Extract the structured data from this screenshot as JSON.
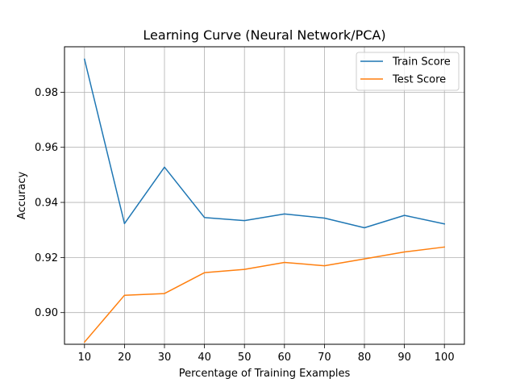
{
  "chart_data": {
    "type": "line",
    "title": "Learning Curve (Neural Network/PCA)",
    "xlabel": "Percentage of Training Examples",
    "ylabel": "Accuracy",
    "x": [
      10,
      20,
      30,
      40,
      50,
      60,
      70,
      80,
      90,
      100
    ],
    "xticks": [
      "10",
      "20",
      "30",
      "40",
      "50",
      "60",
      "70",
      "80",
      "90",
      "100"
    ],
    "yticks": [
      "0.90",
      "0.92",
      "0.94",
      "0.96",
      "0.98"
    ],
    "ytick_values": [
      0.9,
      0.92,
      0.94,
      0.96,
      0.98
    ],
    "xlim": [
      5,
      105
    ],
    "ylim": [
      0.8885,
      0.9965
    ],
    "grid": true,
    "legend_position": "top-right",
    "series": [
      {
        "name": "Train Score",
        "color": "#1f77b4",
        "values": [
          0.992,
          0.9323,
          0.9528,
          0.9345,
          0.9334,
          0.9358,
          0.9343,
          0.9308,
          0.9353,
          0.9322
        ]
      },
      {
        "name": "Test Score",
        "color": "#ff7f0e",
        "values": [
          0.8893,
          0.9063,
          0.9069,
          0.9145,
          0.9157,
          0.9182,
          0.917,
          0.9195,
          0.922,
          0.9238
        ]
      }
    ]
  }
}
